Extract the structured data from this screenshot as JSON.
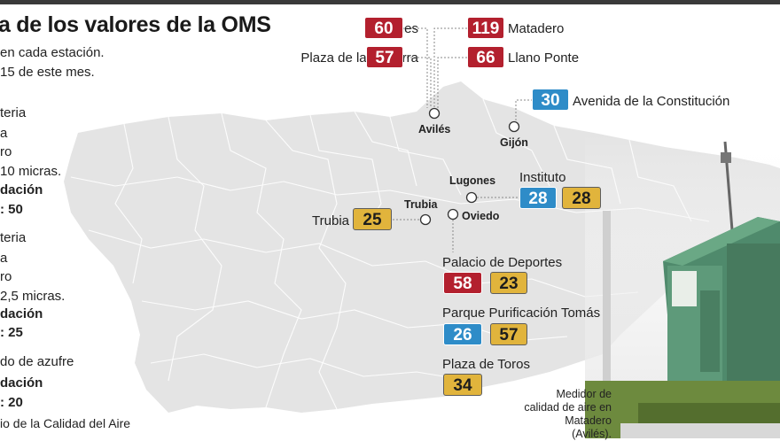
{
  "title": "a de los valores de la OMS",
  "intro": [
    "en cada estación.",
    "15 de este mes."
  ],
  "legend": [
    {
      "text": "teria",
      "bold": false
    },
    {
      "text": "a",
      "bold": false
    },
    {
      "text": "ro",
      "bold": false
    },
    {
      "text": "10 micras.",
      "bold": false
    },
    {
      "text": "dación",
      "bold": true
    },
    {
      "text": ": 50",
      "bold": true
    },
    {
      "text": "teria",
      "bold": false
    },
    {
      "text": "a",
      "bold": false
    },
    {
      "text": "ro",
      "bold": false
    },
    {
      "text": "2,5 micras.",
      "bold": false
    },
    {
      "text": "dación",
      "bold": true
    },
    {
      "text": ": 25",
      "bold": true
    },
    {
      "text": "do de azufre",
      "bold": false
    },
    {
      "text": "dación",
      "bold": true
    },
    {
      "text": ": 20",
      "bold": true
    }
  ],
  "source": "io de la Calidad del Aire",
  "colors": {
    "red": "#b3202e",
    "blue": "#2e8cc8",
    "yellow": "#e1b43c",
    "map": "#e4e4e4"
  },
  "cities": [
    "Avilés",
    "Gijón",
    "Lugones",
    "Trubia",
    "Oviedo"
  ],
  "stations": [
    {
      "name": "Llaranes",
      "values": [
        {
          "v": "60",
          "c": "red"
        }
      ]
    },
    {
      "name": "Matadero",
      "values": [
        {
          "v": "119",
          "c": "red"
        }
      ]
    },
    {
      "name": "Plaza de la Guitarra",
      "values": [
        {
          "v": "57",
          "c": "red"
        }
      ]
    },
    {
      "name": "Llano Ponte",
      "values": [
        {
          "v": "66",
          "c": "red"
        }
      ]
    },
    {
      "name": "Avenida de la Constitución",
      "values": [
        {
          "v": "30",
          "c": "blue"
        }
      ]
    },
    {
      "name": "Instituto",
      "values": [
        {
          "v": "28",
          "c": "blue"
        },
        {
          "v": "28",
          "c": "yellow"
        }
      ]
    },
    {
      "name": "Trubia",
      "values": [
        {
          "v": "25",
          "c": "yellow"
        }
      ]
    },
    {
      "name": "Palacio de Deportes",
      "values": [
        {
          "v": "58",
          "c": "red"
        },
        {
          "v": "23",
          "c": "yellow"
        }
      ]
    },
    {
      "name": "Parque Purificación Tomás",
      "values": [
        {
          "v": "26",
          "c": "blue"
        },
        {
          "v": "57",
          "c": "yellow"
        }
      ]
    },
    {
      "name": "Plaza de Toros",
      "values": [
        {
          "v": "34",
          "c": "yellow"
        }
      ]
    }
  ],
  "caption": "Medidor de calidad de aire en Matadero (Avilés)."
}
